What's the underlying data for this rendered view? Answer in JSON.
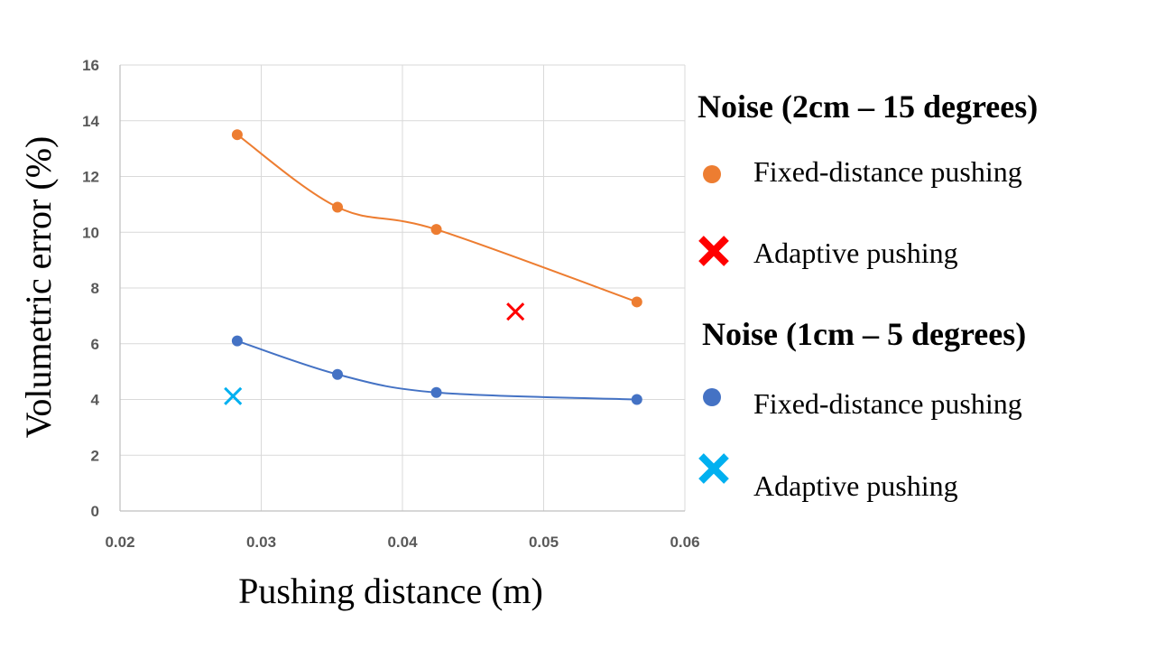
{
  "chart_data": {
    "type": "scatter",
    "xlabel": "Pushing distance (m)",
    "ylabel": "Volumetric error (%)",
    "xlim": [
      0.02,
      0.06
    ],
    "ylim": [
      0,
      16
    ],
    "x_ticks": [
      0.02,
      0.03,
      0.04,
      0.05,
      0.06
    ],
    "x_tick_labels": [
      "0.02",
      "0.03",
      "0.04",
      "0.05",
      "0.06"
    ],
    "y_ticks": [
      0,
      2,
      4,
      6,
      8,
      10,
      12,
      14,
      16
    ],
    "y_tick_labels": [
      "0",
      "2",
      "4",
      "6",
      "8",
      "10",
      "12",
      "14",
      "16"
    ],
    "grid": true,
    "legend_placement": "right",
    "groups": [
      {
        "heading": "Noise (2cm – 15 degrees)",
        "series": [
          {
            "name": "Fixed-distance pushing",
            "marker": "circle",
            "smooth_line": true,
            "color": "#ED7D31",
            "x": [
              0.0283,
              0.0354,
              0.0424,
              0.0566
            ],
            "y": [
              13.5,
              10.9,
              10.1,
              7.5
            ]
          },
          {
            "name": "Adaptive pushing",
            "marker": "x",
            "smooth_line": false,
            "color": "#FF0000",
            "x": [
              0.048
            ],
            "y": [
              7.15
            ]
          }
        ]
      },
      {
        "heading": "Noise (1cm – 5 degrees)",
        "series": [
          {
            "name": "Fixed-distance pushing",
            "marker": "circle",
            "smooth_line": true,
            "color": "#4472C4",
            "x": [
              0.0283,
              0.0354,
              0.0424,
              0.0566
            ],
            "y": [
              6.1,
              4.9,
              4.25,
              4.0
            ]
          },
          {
            "name": "Adaptive pushing",
            "marker": "x",
            "smooth_line": false,
            "color": "#00B0F0",
            "x": [
              0.028
            ],
            "y": [
              4.12
            ]
          }
        ]
      }
    ]
  }
}
